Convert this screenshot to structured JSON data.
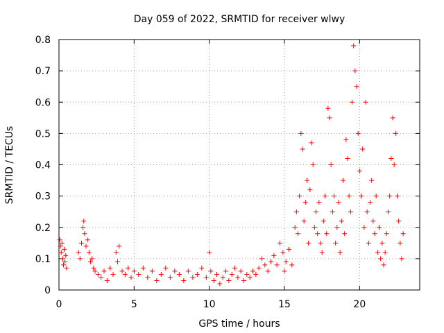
{
  "chart_data": {
    "type": "scatter",
    "title": "Day 059 of 2022, SRMTID for receiver wlwy",
    "xlabel": "GPS time / hours",
    "ylabel": "SRMTID / TECUs",
    "xlim": [
      0,
      24
    ],
    "ylim": [
      0,
      0.8
    ],
    "x_ticks": [
      0,
      5,
      10,
      15,
      20
    ],
    "y_ticks": [
      0,
      0.1,
      0.2,
      0.3,
      0.4,
      0.5,
      0.6,
      0.7,
      0.8
    ],
    "grid": true,
    "legend": "none",
    "marker": "plus",
    "color": "#ff0000",
    "series": [
      {
        "name": "SRMTID",
        "points": [
          [
            0.05,
            0.16
          ],
          [
            0.1,
            0.14
          ],
          [
            0.15,
            0.12
          ],
          [
            0.2,
            0.15
          ],
          [
            0.25,
            0.1
          ],
          [
            0.3,
            0.08
          ],
          [
            0.35,
            0.13
          ],
          [
            0.4,
            0.09
          ],
          [
            0.45,
            0.11
          ],
          [
            0.5,
            0.07
          ],
          [
            1.3,
            0.12
          ],
          [
            1.4,
            0.1
          ],
          [
            1.5,
            0.15
          ],
          [
            1.6,
            0.2
          ],
          [
            1.65,
            0.22
          ],
          [
            1.7,
            0.18
          ],
          [
            1.8,
            0.14
          ],
          [
            1.9,
            0.16
          ],
          [
            2.0,
            0.12
          ],
          [
            2.1,
            0.09
          ],
          [
            2.2,
            0.1
          ],
          [
            2.3,
            0.07
          ],
          [
            2.4,
            0.06
          ],
          [
            2.6,
            0.05
          ],
          [
            2.8,
            0.04
          ],
          [
            3.0,
            0.06
          ],
          [
            3.2,
            0.03
          ],
          [
            3.4,
            0.07
          ],
          [
            3.6,
            0.05
          ],
          [
            3.8,
            0.12
          ],
          [
            3.9,
            0.09
          ],
          [
            4.0,
            0.14
          ],
          [
            4.2,
            0.06
          ],
          [
            4.4,
            0.05
          ],
          [
            4.6,
            0.07
          ],
          [
            4.8,
            0.04
          ],
          [
            5.0,
            0.06
          ],
          [
            5.3,
            0.05
          ],
          [
            5.6,
            0.07
          ],
          [
            5.9,
            0.04
          ],
          [
            6.2,
            0.06
          ],
          [
            6.5,
            0.03
          ],
          [
            6.8,
            0.05
          ],
          [
            7.1,
            0.07
          ],
          [
            7.4,
            0.04
          ],
          [
            7.7,
            0.06
          ],
          [
            8.0,
            0.05
          ],
          [
            8.3,
            0.03
          ],
          [
            8.6,
            0.06
          ],
          [
            8.9,
            0.04
          ],
          [
            9.2,
            0.05
          ],
          [
            9.5,
            0.07
          ],
          [
            9.8,
            0.04
          ],
          [
            10.0,
            0.12
          ],
          [
            10.1,
            0.06
          ],
          [
            10.3,
            0.03
          ],
          [
            10.5,
            0.05
          ],
          [
            10.7,
            0.02
          ],
          [
            10.9,
            0.04
          ],
          [
            11.1,
            0.06
          ],
          [
            11.3,
            0.03
          ],
          [
            11.5,
            0.05
          ],
          [
            11.7,
            0.07
          ],
          [
            11.9,
            0.04
          ],
          [
            12.1,
            0.06
          ],
          [
            12.3,
            0.03
          ],
          [
            12.5,
            0.05
          ],
          [
            12.7,
            0.04
          ],
          [
            12.9,
            0.06
          ],
          [
            13.1,
            0.05
          ],
          [
            13.3,
            0.07
          ],
          [
            13.5,
            0.1
          ],
          [
            13.7,
            0.08
          ],
          [
            13.9,
            0.06
          ],
          [
            14.1,
            0.09
          ],
          [
            14.3,
            0.11
          ],
          [
            14.5,
            0.08
          ],
          [
            14.7,
            0.15
          ],
          [
            14.9,
            0.12
          ],
          [
            15.0,
            0.06
          ],
          [
            15.1,
            0.09
          ],
          [
            15.3,
            0.13
          ],
          [
            15.5,
            0.08
          ],
          [
            15.7,
            0.2
          ],
          [
            15.8,
            0.25
          ],
          [
            15.9,
            0.18
          ],
          [
            16.0,
            0.3
          ],
          [
            16.1,
            0.5
          ],
          [
            16.2,
            0.45
          ],
          [
            16.3,
            0.22
          ],
          [
            16.4,
            0.28
          ],
          [
            16.5,
            0.35
          ],
          [
            16.6,
            0.15
          ],
          [
            16.7,
            0.32
          ],
          [
            16.8,
            0.47
          ],
          [
            16.9,
            0.4
          ],
          [
            17.0,
            0.2
          ],
          [
            17.1,
            0.25
          ],
          [
            17.2,
            0.18
          ],
          [
            17.3,
            0.28
          ],
          [
            17.4,
            0.15
          ],
          [
            17.5,
            0.12
          ],
          [
            17.6,
            0.22
          ],
          [
            17.7,
            0.3
          ],
          [
            17.8,
            0.18
          ],
          [
            17.9,
            0.58
          ],
          [
            18.0,
            0.55
          ],
          [
            18.1,
            0.4
          ],
          [
            18.2,
            0.25
          ],
          [
            18.3,
            0.3
          ],
          [
            18.4,
            0.15
          ],
          [
            18.5,
            0.2
          ],
          [
            18.6,
            0.28
          ],
          [
            18.7,
            0.12
          ],
          [
            18.8,
            0.22
          ],
          [
            18.9,
            0.35
          ],
          [
            19.0,
            0.18
          ],
          [
            19.1,
            0.48
          ],
          [
            19.2,
            0.42
          ],
          [
            19.3,
            0.3
          ],
          [
            19.4,
            0.25
          ],
          [
            19.5,
            0.6
          ],
          [
            19.6,
            0.78
          ],
          [
            19.7,
            0.7
          ],
          [
            19.8,
            0.65
          ],
          [
            19.9,
            0.5
          ],
          [
            20.0,
            0.38
          ],
          [
            20.1,
            0.3
          ],
          [
            20.2,
            0.45
          ],
          [
            20.3,
            0.2
          ],
          [
            20.4,
            0.6
          ],
          [
            20.5,
            0.25
          ],
          [
            20.6,
            0.15
          ],
          [
            20.7,
            0.28
          ],
          [
            20.8,
            0.35
          ],
          [
            20.9,
            0.22
          ],
          [
            21.0,
            0.18
          ],
          [
            21.1,
            0.3
          ],
          [
            21.2,
            0.12
          ],
          [
            21.3,
            0.2
          ],
          [
            21.4,
            0.1
          ],
          [
            21.5,
            0.15
          ],
          [
            21.6,
            0.08
          ],
          [
            21.7,
            0.12
          ],
          [
            21.8,
            0.18
          ],
          [
            21.9,
            0.25
          ],
          [
            22.0,
            0.3
          ],
          [
            22.1,
            0.42
          ],
          [
            22.2,
            0.55
          ],
          [
            22.3,
            0.4
          ],
          [
            22.4,
            0.5
          ],
          [
            22.5,
            0.3
          ],
          [
            22.6,
            0.22
          ],
          [
            22.7,
            0.15
          ],
          [
            22.8,
            0.1
          ],
          [
            22.9,
            0.18
          ]
        ]
      }
    ]
  }
}
